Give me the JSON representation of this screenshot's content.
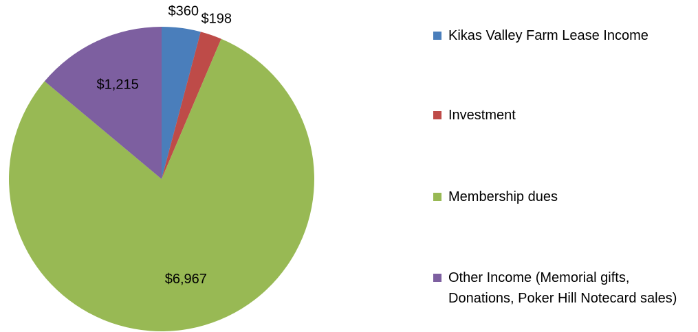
{
  "chart_data": {
    "type": "pie",
    "categories": [
      "Kikas Valley Farm Lease Income",
      "Investment",
      "Membership dues",
      "Other Income (Memorial gifts, Donations, Poker Hill Notecard sales)"
    ],
    "values": [
      360,
      198,
      6967,
      1215
    ],
    "value_labels": [
      "$360",
      "$198",
      "$6,967",
      "$1,215"
    ],
    "colors": [
      "#4a7ebb",
      "#be4b48",
      "#98b954",
      "#7d5fa0"
    ],
    "legend": "right"
  }
}
